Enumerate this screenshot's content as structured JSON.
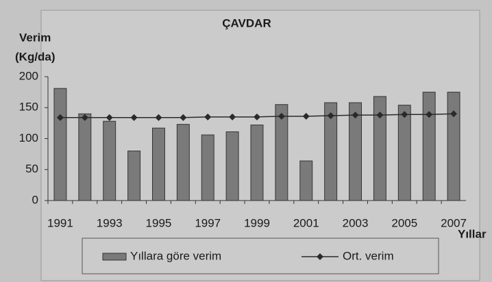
{
  "chart_data": {
    "type": "combo",
    "title": "ÇAVDAR",
    "y_label_1": "Verim",
    "y_label_2": "(Kg/da)",
    "x_label": "Yıllar",
    "categories": [
      "1991",
      null,
      "1993",
      null,
      "1995",
      null,
      "1997",
      null,
      "1999",
      null,
      "2001",
      null,
      "2003",
      null,
      "2005",
      null,
      "2007"
    ],
    "series": [
      {
        "name": "Yıllara göre verim",
        "type": "bar",
        "color": "#7a7a7a",
        "values": [
          181,
          140,
          128,
          80,
          117,
          123,
          106,
          111,
          122,
          155,
          64,
          158,
          158,
          168,
          154,
          175,
          175
        ]
      },
      {
        "name": "Ort. verim",
        "type": "line",
        "color": "#2a2a2a",
        "values": [
          134,
          134,
          134,
          134,
          134,
          134,
          135,
          135,
          135,
          136,
          136,
          137,
          138,
          138,
          139,
          139,
          140
        ]
      }
    ],
    "ylim": [
      0,
      200
    ],
    "yticks": [
      0,
      50,
      100,
      150,
      200
    ],
    "grid": false,
    "legend": "bottom"
  }
}
